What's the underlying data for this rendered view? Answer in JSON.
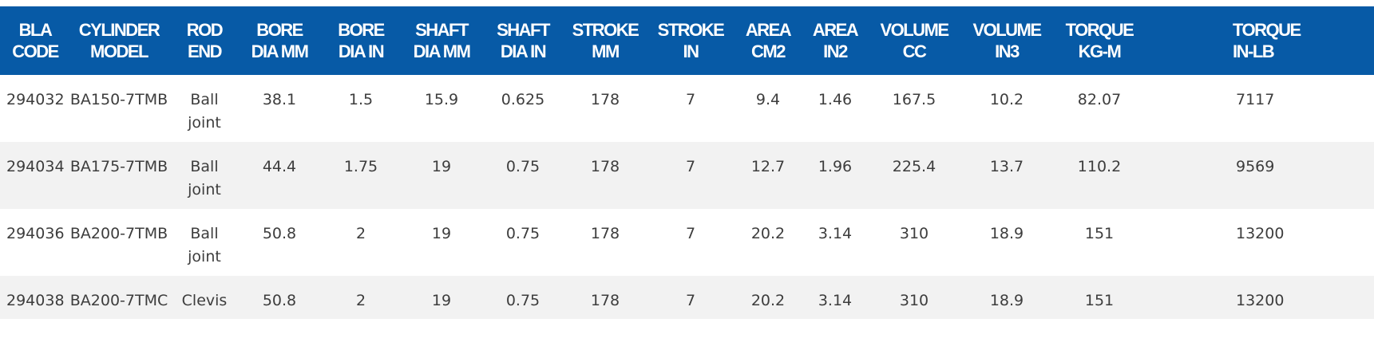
{
  "table": {
    "headers": [
      "BLA\nCODE",
      "CYLINDER\nMODEL",
      "ROD\nEND",
      "BORE\nDIA MM",
      "BORE\nDIA IN",
      "SHAFT\nDIA MM",
      "SHAFT\nDIA IN",
      "STROKE\nMM",
      "STROKE\nIN",
      "AREA\nCM2",
      "AREA\nIN2",
      "VOLUME\nCC",
      "VOLUME\nIN3",
      "TORQUE\nKG-M",
      "TORQUE\nIN-LB"
    ],
    "rows": [
      [
        "294032",
        "BA150-7TMB",
        "Ball joint",
        "38.1",
        "1.5",
        "15.9",
        "0.625",
        "178",
        "7",
        "9.4",
        "1.46",
        "167.5",
        "10.2",
        "82.07",
        "7117"
      ],
      [
        "294034",
        "BA175-7TMB",
        "Ball joint",
        "44.4",
        "1.75",
        "19",
        "0.75",
        "178",
        "7",
        "12.7",
        "1.96",
        "225.4",
        "13.7",
        "110.2",
        "9569"
      ],
      [
        "294036",
        "BA200-7TMB",
        "Ball joint",
        "50.8",
        "2",
        "19",
        "0.75",
        "178",
        "7",
        "20.2",
        "3.14",
        "310",
        "18.9",
        "151",
        "13200"
      ],
      [
        "294038",
        "BA200-7TMC",
        "Clevis",
        "50.8",
        "2",
        "19",
        "0.75",
        "178",
        "7",
        "20.2",
        "3.14",
        "310",
        "18.9",
        "151",
        "13200"
      ]
    ]
  },
  "colors": {
    "header_bg": "#075aa6",
    "header_text": "#ffffff",
    "row_alt_bg": "#f2f2f2",
    "cell_text": "#3d3d3d"
  }
}
